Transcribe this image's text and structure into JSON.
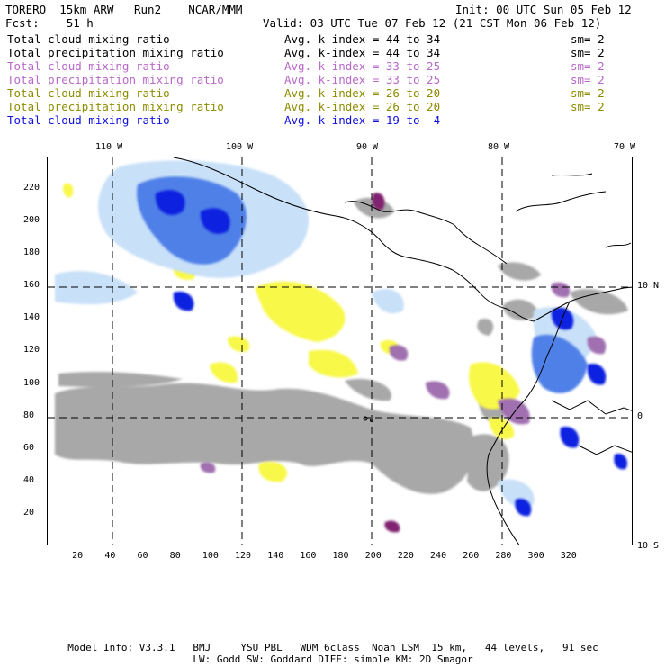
{
  "header": {
    "model": "TORERO  15km ARW   Run2    NCAR/MMM",
    "init": "Init: 00 UTC Sun 05 Feb 12",
    "fcst": "Fcst:    51 h",
    "valid": "Valid: 03 UTC Tue 07 Feb 12 (21 CST Mon 06 Feb 12)"
  },
  "legend": [
    {
      "field": "Total cloud mixing ratio",
      "kindex": "Avg. k-index = 44 to 34",
      "sm": "sm= 2",
      "color": "#000000"
    },
    {
      "field": "Total precipitation mixing ratio",
      "kindex": "Avg. k-index = 44 to 34",
      "sm": "sm= 2",
      "color": "#000000"
    },
    {
      "field": "Total cloud mixing ratio",
      "kindex": "Avg. k-index = 33 to 25",
      "sm": "sm= 2",
      "color": "#b868c8"
    },
    {
      "field": "Total precipitation mixing ratio",
      "kindex": "Avg. k-index = 33 to 25",
      "sm": "sm= 2",
      "color": "#b868c8"
    },
    {
      "field": "Total cloud mixing ratio",
      "kindex": "Avg. k-index = 26 to 20",
      "sm": "sm= 2",
      "color": "#8c8c00"
    },
    {
      "field": "Total precipitation mixing ratio",
      "kindex": "Avg. k-index = 26 to 20",
      "sm": "sm= 2",
      "color": "#8c8c00"
    },
    {
      "field": "Total cloud mixing ratio",
      "kindex": "Avg. k-index = 19 to  4",
      "sm": "",
      "color": "#1010e0"
    }
  ],
  "map": {
    "lon_labels": [
      "110 W",
      "100 W",
      "90 W",
      "80 W",
      "70 W"
    ],
    "lat_labels": [
      "10 N",
      "0",
      "10 S"
    ],
    "x_ticks": [
      "20",
      "40",
      "60",
      "80",
      "100",
      "120",
      "140",
      "160",
      "180",
      "200",
      "220",
      "240",
      "260",
      "280",
      "300",
      "320"
    ],
    "y_ticks": [
      "220",
      "200",
      "180",
      "160",
      "140",
      "120",
      "100",
      "80",
      "60",
      "40",
      "20"
    ],
    "field_colors": {
      "gray": "#a8a8a8",
      "purple": "#a070b0",
      "dark_purple": "#802070",
      "yellow": "#f8f848",
      "light_blue": "#c8e0f8",
      "mid_blue": "#5080e8",
      "blue": "#1020e0"
    }
  },
  "footer": {
    "line1": "Model Info: V3.3.1   BMJ     YSU PBL   WDM 6class  Noah LSM  15 km,   44 levels,   91 sec",
    "line2": "LW: Godd SW: Goddard DIFF: simple KM: 2D Smagor"
  }
}
